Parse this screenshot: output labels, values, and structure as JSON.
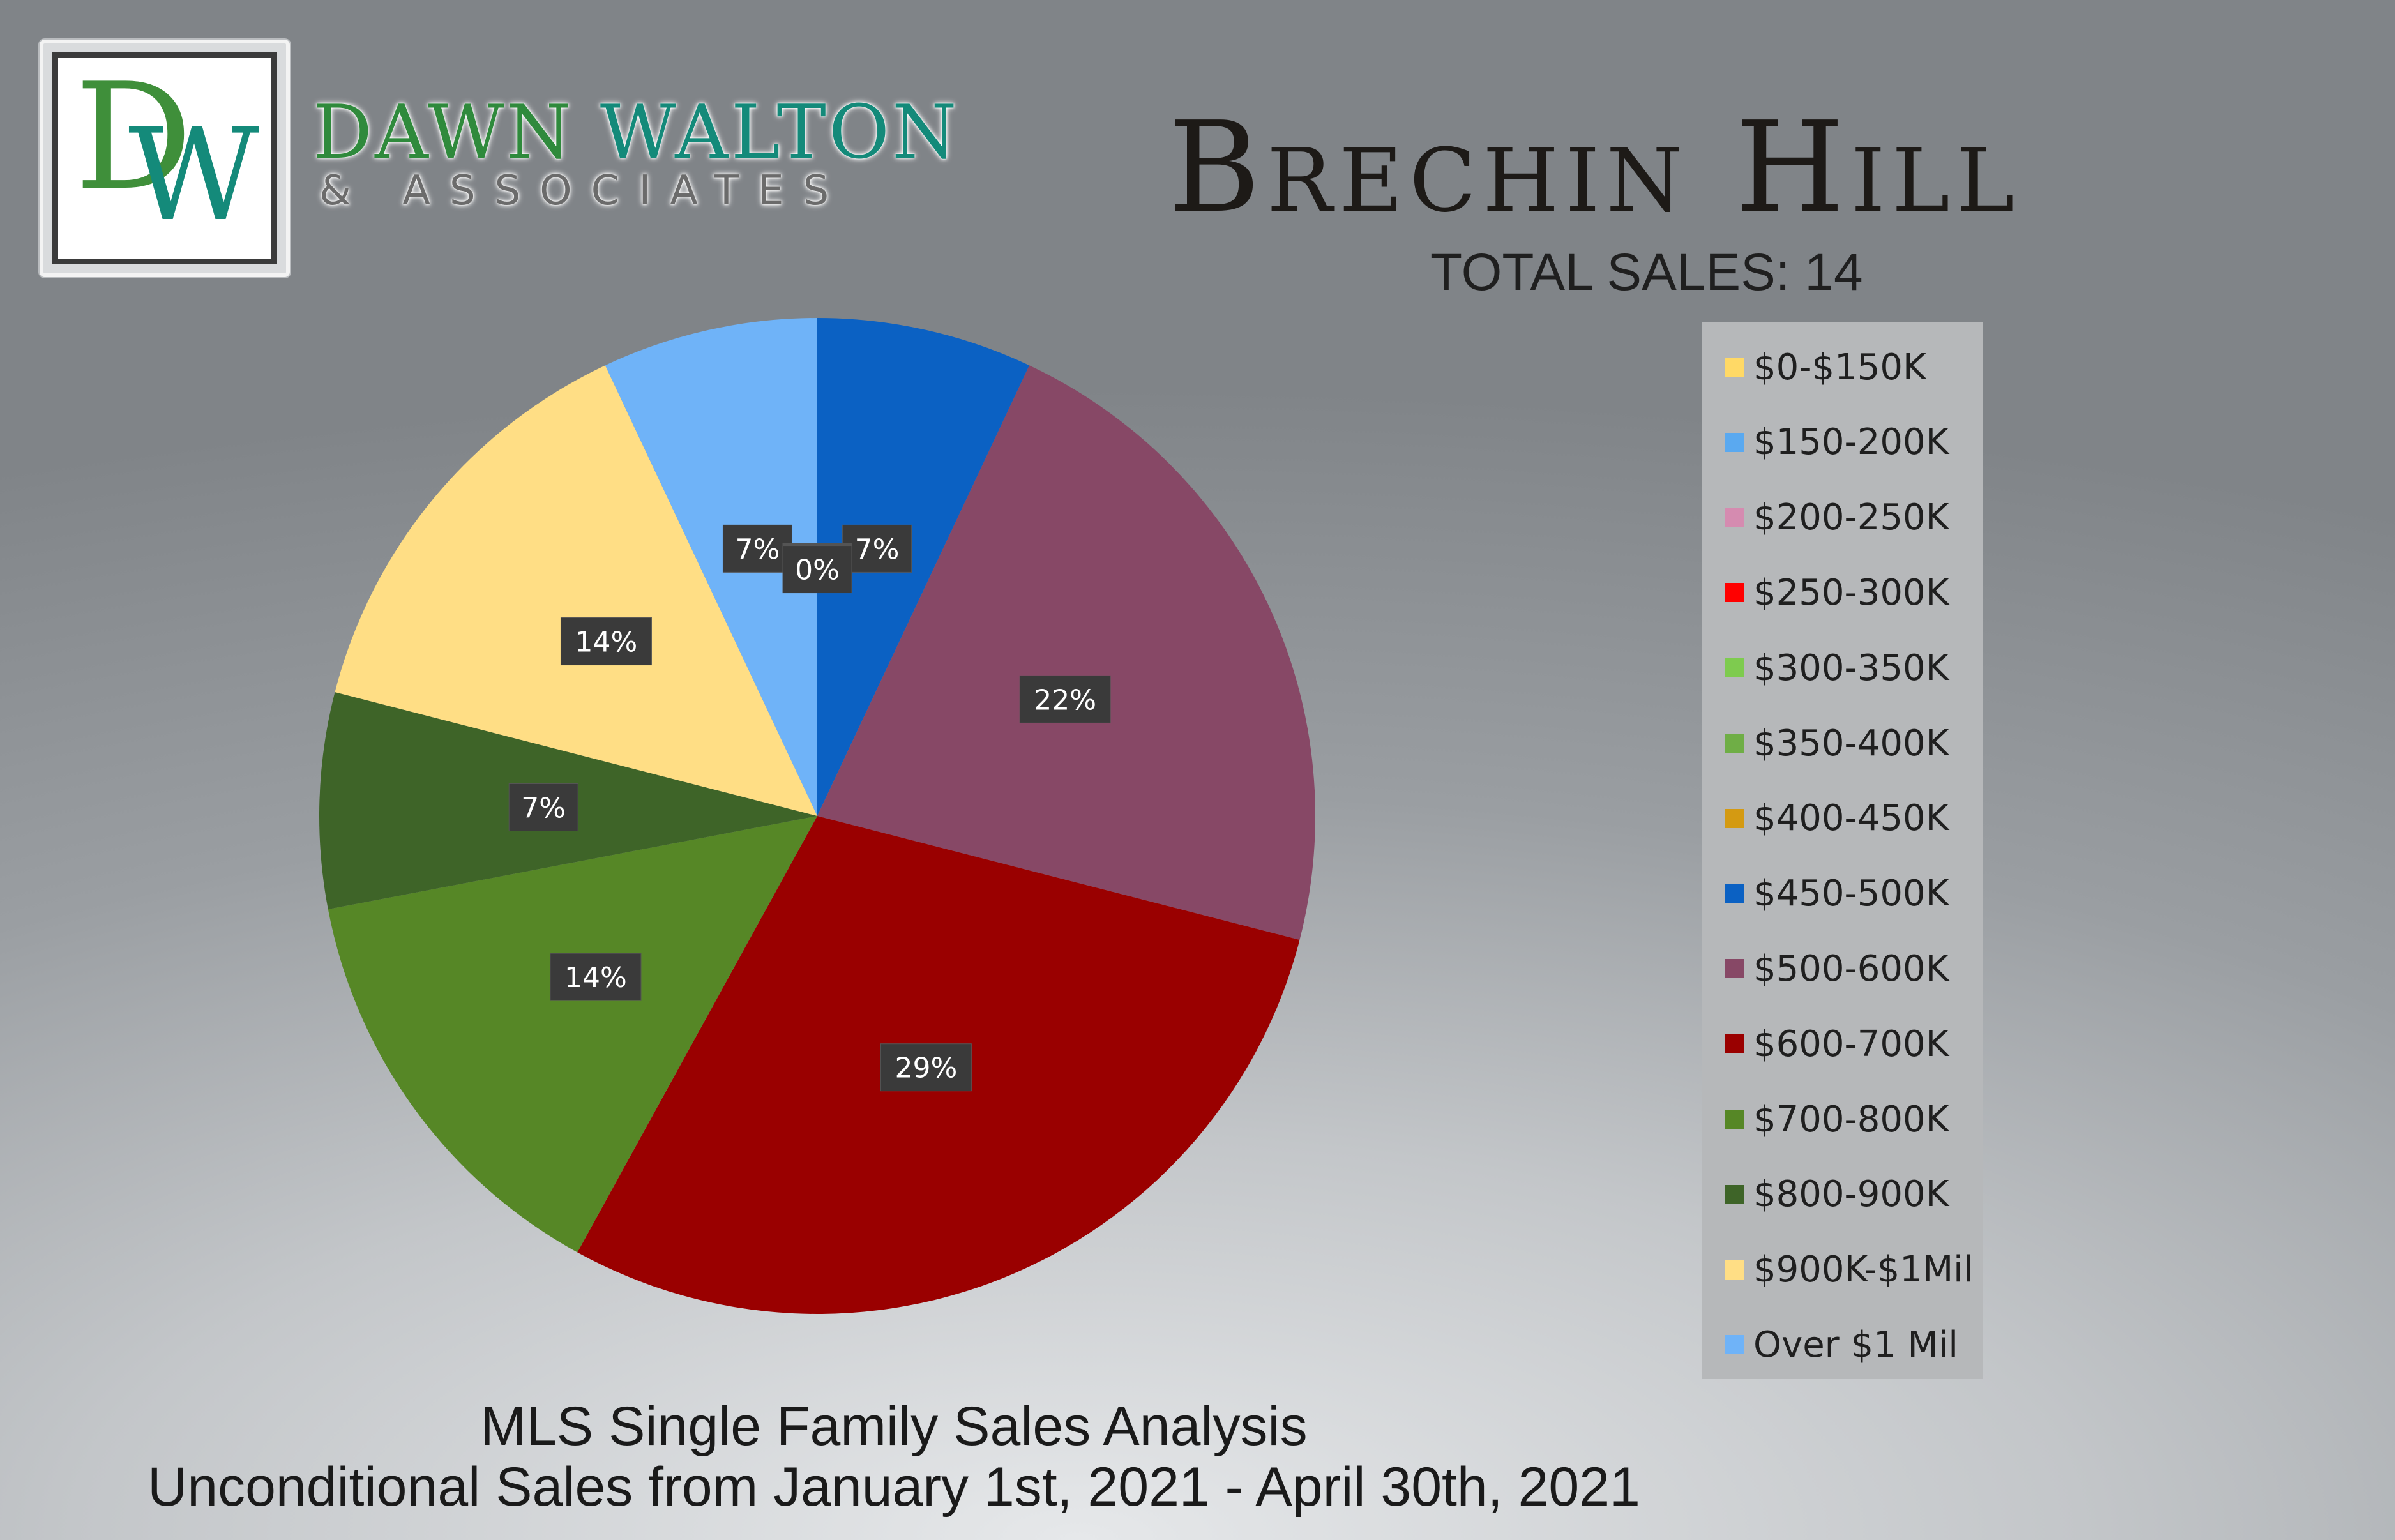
{
  "brand": {
    "logo_letter_1": "D",
    "logo_letter_2": "W",
    "name_part_1": "DAWN",
    "name_part_2": "WALTON",
    "subtitle": "& ASSOCIATES"
  },
  "header": {
    "title": "Brechin Hill",
    "total_sales": "TOTAL SALES: 14"
  },
  "footer": {
    "line1": "MLS Single Family Sales Analysis",
    "line2": "Unconditional Sales from January 1st, 2021 - April 30th, 2021"
  },
  "chart_data": {
    "type": "pie",
    "title": "Brechin Hill",
    "categories": [
      "$0-$150K",
      "$150-200K",
      "$200-250K",
      "$250-300K",
      "$300-350K",
      "$350-400K",
      "$400-450K",
      "$450-500K",
      "$500-600K",
      "$600-700K",
      "$700-800K",
      "$800-900K",
      "$900K-$1Mil",
      "Over $1 Mil"
    ],
    "values": [
      0,
      0,
      0,
      0,
      0,
      0,
      0,
      7,
      22,
      29,
      14,
      7,
      14,
      7
    ],
    "data_labels": [
      "0%",
      "0%",
      "0%",
      "0%",
      "0%",
      "0%",
      "0%",
      "7%",
      "22%",
      "29%",
      "14%",
      "7%",
      "14%",
      "7%"
    ],
    "colors": [
      "#ffd966",
      "#5aa9f0",
      "#d58bb0",
      "#ff0000",
      "#7ecb4f",
      "#6fae46",
      "#d49a12",
      "#0b61c3",
      "#874866",
      "#9a0000",
      "#568726",
      "#3e6428",
      "#ffde85",
      "#6fb3f8"
    ],
    "legend_position": "right",
    "start_angle_deg": 0,
    "direction": "clockwise"
  }
}
